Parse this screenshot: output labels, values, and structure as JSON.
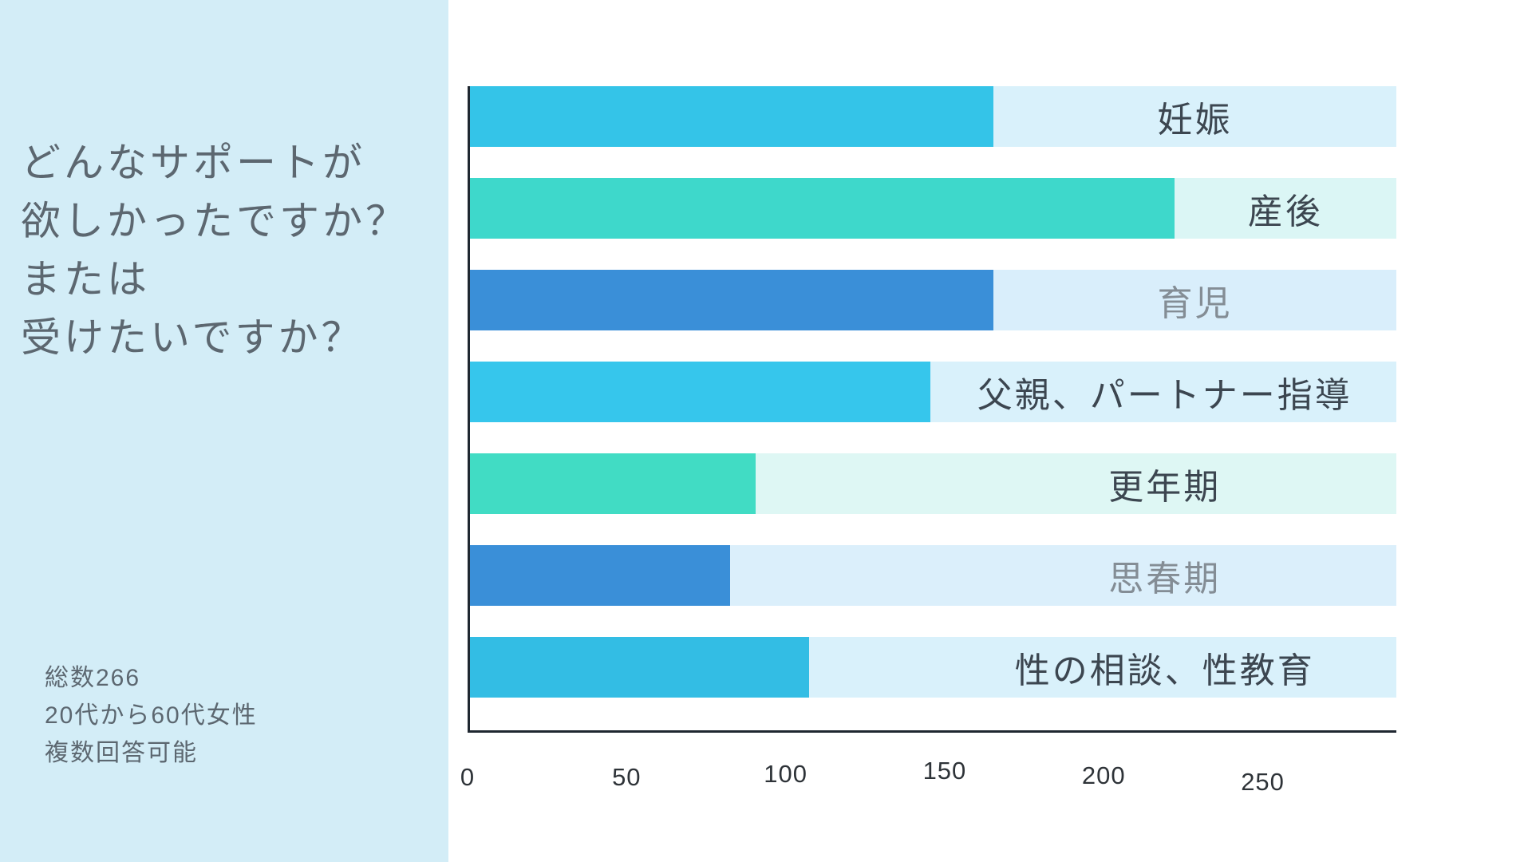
{
  "sidebar": {
    "background": "#d3edf7",
    "text_color": "#5c6770",
    "title_lines": [
      "どんなサポートが",
      "欲しかったですか？",
      "または",
      "受けたいですか？"
    ],
    "meta_lines": [
      "総数266",
      "20代から60代女性",
      "複数回答可能"
    ]
  },
  "chart_data": {
    "type": "bar",
    "orientation": "horizontal",
    "title": "どんなサポートが欲しかったですか？または受けたいですか？",
    "subtitle": "総数266 / 20代から60代女性 / 複数回答可能",
    "categories": [
      "妊娠",
      "産後",
      "育児",
      "父親、パートナー指導",
      "更年期",
      "思春期",
      "性の相談、性教育"
    ],
    "values": [
      165,
      222,
      165,
      145,
      90,
      82,
      107
    ],
    "x_ticks": [
      0,
      50,
      100,
      150,
      200,
      250
    ],
    "x_max": 292,
    "xlabel": "",
    "ylabel": "",
    "grid": "off",
    "legend": "none",
    "bar_colors": [
      "#34c4e8",
      "#3ed8cb",
      "#3a8fd8",
      "#36c6ec",
      "#41dcc4",
      "#3a8fd8",
      "#33bde4"
    ],
    "track_colors": [
      "#d9f1fb",
      "#dbf6f5",
      "#d9eefb",
      "#d9f1fb",
      "#def7f4",
      "#dbeffb",
      "#d9f1fb"
    ],
    "label_colors": [
      "#3c4650",
      "#3c4650",
      "#848d95",
      "#3c4650",
      "#3c4650",
      "#848d95",
      "#3c4650"
    ],
    "axis_color": "#1f2730",
    "tick_color": "#2e3338"
  }
}
